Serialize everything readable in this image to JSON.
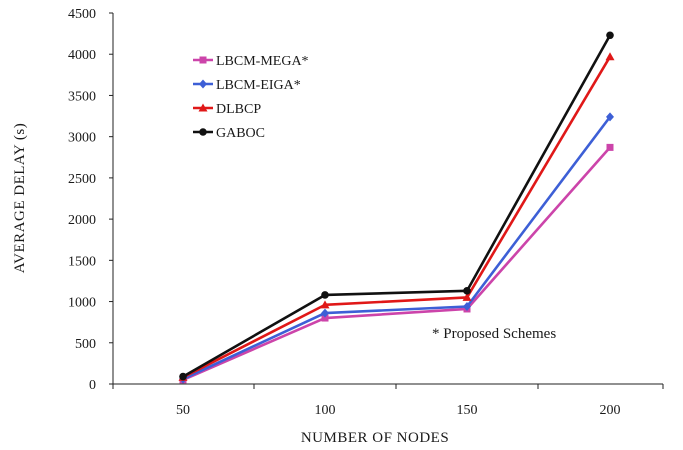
{
  "chart_data": {
    "type": "line",
    "xlabel": "NUMBER OF NODES",
    "ylabel": "AVERAGE DELAY (s)",
    "categories": [
      "50",
      "100",
      "150",
      "200"
    ],
    "ylim": [
      0,
      4500
    ],
    "yticks": [
      "0",
      "500",
      "1000",
      "1500",
      "2000",
      "2500",
      "3000",
      "3500",
      "4000",
      "4500"
    ],
    "legend_position": "top-left",
    "annotation": "* Proposed Schemes",
    "series": [
      {
        "name": "LBCM-MEGA*",
        "values": [
          50,
          800,
          910,
          2870
        ],
        "color": "#cc44aa",
        "marker": "square"
      },
      {
        "name": "LBCM-EIGA*",
        "values": [
          60,
          860,
          940,
          3240
        ],
        "color": "#3d5fd6",
        "marker": "diamond"
      },
      {
        "name": "DLBCP",
        "values": [
          80,
          960,
          1050,
          3970
        ],
        "color": "#e01818",
        "marker": "triangle"
      },
      {
        "name": "GABOC",
        "values": [
          90,
          1080,
          1130,
          4230
        ],
        "color": "#111111",
        "marker": "circle"
      }
    ]
  }
}
